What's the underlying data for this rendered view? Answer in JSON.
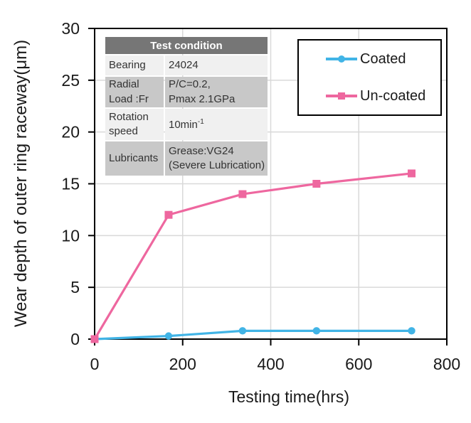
{
  "chart_data": {
    "type": "line",
    "x": [
      0,
      168,
      336,
      504,
      720
    ],
    "series": [
      {
        "name": "Coated",
        "color": "#41b4e6",
        "marker": "circle",
        "values": [
          0,
          0.3,
          0.8,
          0.8,
          0.8
        ]
      },
      {
        "name": "Un-coated",
        "color": "#ee679f",
        "marker": "square",
        "values": [
          0,
          12,
          14,
          15,
          16
        ]
      }
    ],
    "xlabel": "Testing time(hrs)",
    "ylabel": "Wear depth of outer ring raceway(μm)",
    "xlim": [
      0,
      800
    ],
    "ylim": [
      0,
      30
    ],
    "x_ticks": [
      0,
      200,
      400,
      600,
      800
    ],
    "y_ticks": [
      0,
      5,
      10,
      15,
      20,
      25,
      30
    ],
    "grid": true,
    "legend_position": "top-right"
  },
  "condition_table": {
    "title": "Test condition",
    "rows": [
      {
        "label_lines": [
          "Bearing"
        ],
        "lines": [
          "24024"
        ]
      },
      {
        "label_lines": [
          "Radial",
          "Load :Fr"
        ],
        "lines": [
          "P/C=0.2,",
          "Pmax 2.1GPa"
        ]
      },
      {
        "label_lines": [
          "Rotation",
          "speed"
        ],
        "lines": [
          "10min"
        ],
        "sup": "-1"
      },
      {
        "label_lines": [
          "Lubricants"
        ],
        "lines": [
          "Grease:VG24",
          "(Severe Lubrication)"
        ]
      }
    ]
  },
  "colors": {
    "coated": "#41b4e6",
    "uncoated": "#ee679f",
    "grid": "#d9d9d9",
    "axis": "#000000",
    "table_header_bg": "#767676",
    "row_light": "#f0f0f0",
    "row_dark": "#c8c8c8"
  }
}
